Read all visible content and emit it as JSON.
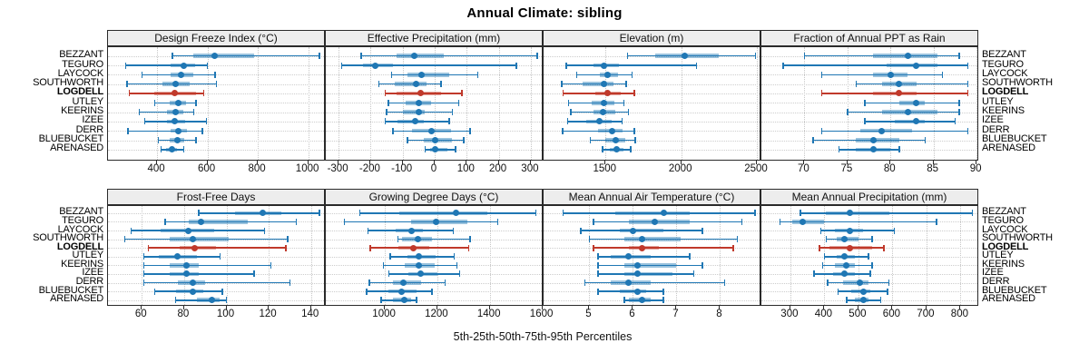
{
  "title": "Annual Climate: sibling",
  "footer": "5th-25th-50th-75th-95th Percentiles",
  "sites": [
    {
      "name": "BEZZANT",
      "bold": false
    },
    {
      "name": "TEGURO",
      "bold": false
    },
    {
      "name": "LAYCOCK",
      "bold": false
    },
    {
      "name": "SOUTHWORTH",
      "bold": false
    },
    {
      "name": "LOGDELL",
      "bold": true
    },
    {
      "name": "UTLEY",
      "bold": false
    },
    {
      "name": "KEERINS",
      "bold": false
    },
    {
      "name": "IZEE",
      "bold": false
    },
    {
      "name": "DERR",
      "bold": false
    },
    {
      "name": "BLUEBUCKET",
      "bold": false
    },
    {
      "name": "ARENASED",
      "bold": false
    }
  ],
  "colors": {
    "series": "#1f77b4",
    "highlight": "#c0392b",
    "grid": "#c9c9c9",
    "strip_bg": "#ededed",
    "border": "#2a2a2a",
    "text": "#000000"
  },
  "chart_data": {
    "type": "dotplot",
    "subtype": "percentile-ranges (5th-25th-50th-75th-95th)",
    "legend_position": "none",
    "grid": "dotted",
    "categories": [
      "BEZZANT",
      "TEGURO",
      "LAYCOCK",
      "SOUTHWORTH",
      "LOGDELL",
      "UTLEY",
      "KEERINS",
      "IZEE",
      "DERR",
      "BLUEBUCKET",
      "ARENASED"
    ],
    "highlight_category": "LOGDELL",
    "panels": [
      {
        "title": "Design Freeze Index (°C)",
        "row": 0,
        "col": 0,
        "axis": {
          "min": 205,
          "max": 1070,
          "ticks": [
            400,
            600,
            800,
            1000
          ]
        },
        "values": [
          [
            460,
            545,
            630,
            785,
            1045
          ],
          [
            275,
            455,
            505,
            550,
            600
          ],
          [
            340,
            455,
            495,
            545,
            630
          ],
          [
            280,
            420,
            475,
            530,
            635
          ],
          [
            290,
            390,
            470,
            555,
            585
          ],
          [
            390,
            450,
            485,
            515,
            555
          ],
          [
            330,
            440,
            475,
            505,
            545
          ],
          [
            350,
            440,
            470,
            510,
            595
          ],
          [
            285,
            455,
            485,
            520,
            580
          ],
          [
            405,
            450,
            480,
            508,
            555
          ],
          [
            415,
            437,
            460,
            480,
            505
          ]
        ]
      },
      {
        "title": "Effective Precipitation (mm)",
        "row": 0,
        "col": 1,
        "axis": {
          "min": -340,
          "max": 340,
          "ticks": [
            -300,
            -200,
            -100,
            0,
            100,
            200,
            300
          ]
        },
        "values": [
          [
            -230,
            -120,
            -65,
            30,
            320
          ],
          [
            -290,
            -225,
            -185,
            -130,
            255
          ],
          [
            -135,
            -85,
            -40,
            45,
            135
          ],
          [
            -175,
            -125,
            -57,
            -24,
            19
          ],
          [
            -155,
            -120,
            -45,
            20,
            85
          ],
          [
            -145,
            -90,
            -50,
            -10,
            75
          ],
          [
            -150,
            -100,
            -50,
            -30,
            55
          ],
          [
            -155,
            -115,
            -60,
            -35,
            45
          ],
          [
            -130,
            -70,
            -10,
            50,
            110
          ],
          [
            -85,
            -35,
            0,
            55,
            90
          ],
          [
            -30,
            -15,
            0,
            40,
            65
          ]
        ]
      },
      {
        "title": "Elevation (m)",
        "row": 0,
        "col": 2,
        "axis": {
          "min": 1090,
          "max": 2530,
          "ticks": [
            1500,
            2000,
            2500
          ]
        },
        "values": [
          [
            1645,
            1830,
            2025,
            2250,
            2490
          ],
          [
            1240,
            1420,
            1490,
            1590,
            2100
          ],
          [
            1310,
            1460,
            1515,
            1580,
            1675
          ],
          [
            1210,
            1350,
            1490,
            1550,
            1635
          ],
          [
            1220,
            1430,
            1515,
            1600,
            1690
          ],
          [
            1255,
            1410,
            1490,
            1560,
            1620
          ],
          [
            1270,
            1420,
            1485,
            1565,
            1650
          ],
          [
            1250,
            1370,
            1460,
            1540,
            1610
          ],
          [
            1215,
            1450,
            1545,
            1610,
            1690
          ],
          [
            1400,
            1500,
            1565,
            1630,
            1695
          ],
          [
            1480,
            1530,
            1570,
            1620,
            1665
          ]
        ]
      },
      {
        "title": "Fraction of Annual PPT as Rain",
        "row": 0,
        "col": 3,
        "axis": {
          "min": 65,
          "max": 90.3,
          "ticks": [
            70,
            75,
            80,
            85,
            90
          ]
        },
        "values": [
          [
            70,
            78,
            82,
            85.5,
            88
          ],
          [
            67.5,
            79.5,
            83,
            85.5,
            89
          ],
          [
            72,
            78,
            80,
            82,
            86
          ],
          [
            76,
            79,
            81,
            83,
            89
          ],
          [
            72,
            78,
            81,
            83,
            89
          ],
          [
            77,
            81,
            83,
            84,
            88
          ],
          [
            75,
            79,
            82,
            85.5,
            88
          ],
          [
            77,
            80.5,
            83,
            84,
            87.5
          ],
          [
            72,
            76.5,
            79,
            82.5,
            89
          ],
          [
            71,
            76,
            78,
            81,
            84
          ],
          [
            74,
            76,
            78,
            80,
            81
          ]
        ]
      },
      {
        "title": "Frost-Free Days",
        "row": 1,
        "col": 0,
        "axis": {
          "min": 44,
          "max": 147,
          "ticks": [
            60,
            80,
            100,
            120,
            140
          ]
        },
        "values": [
          [
            87,
            104,
            117,
            126,
            144
          ],
          [
            71,
            82,
            88,
            110,
            133
          ],
          [
            55,
            69,
            82,
            94,
            118
          ],
          [
            52,
            73,
            84,
            101,
            129
          ],
          [
            63,
            78,
            85,
            95,
            128
          ],
          [
            61,
            68,
            77,
            86,
            97
          ],
          [
            61,
            73,
            81,
            87,
            121
          ],
          [
            61,
            73,
            81,
            87,
            113
          ],
          [
            61,
            77,
            84,
            90,
            130
          ],
          [
            66,
            76,
            84,
            89,
            98
          ],
          [
            76,
            86,
            93,
            97,
            100
          ]
        ]
      },
      {
        "title": "Growing Degree Days (°C)",
        "row": 1,
        "col": 1,
        "axis": {
          "min": 775,
          "max": 1605,
          "ticks": [
            1000,
            1200,
            1400,
            1600
          ]
        },
        "values": [
          [
            905,
            1055,
            1270,
            1390,
            1575
          ],
          [
            845,
            1100,
            1195,
            1315,
            1430
          ],
          [
            935,
            1040,
            1100,
            1145,
            1260
          ],
          [
            1050,
            1065,
            1125,
            1180,
            1325
          ],
          [
            945,
            1050,
            1110,
            1170,
            1320
          ],
          [
            1020,
            1085,
            1130,
            1195,
            1265
          ],
          [
            995,
            1075,
            1130,
            1190,
            1275
          ],
          [
            1015,
            1090,
            1135,
            1200,
            1285
          ],
          [
            940,
            1030,
            1070,
            1140,
            1230
          ],
          [
            930,
            1015,
            1065,
            1120,
            1180
          ],
          [
            985,
            1030,
            1075,
            1100,
            1120
          ]
        ]
      },
      {
        "title": "Mean Annual Air Temperature (°C)",
        "row": 1,
        "col": 2,
        "axis": {
          "min": 3.95,
          "max": 8.95,
          "ticks": [
            5,
            6,
            7,
            8
          ]
        },
        "values": [
          [
            4.4,
            5.6,
            6.7,
            7.3,
            8.8
          ],
          [
            5.1,
            5.9,
            6.5,
            7.3,
            8.5
          ],
          [
            4.8,
            5.7,
            6.0,
            6.7,
            7.6
          ],
          [
            5.0,
            5.8,
            6.2,
            7.1,
            8.4
          ],
          [
            5.1,
            5.9,
            6.2,
            6.6,
            8.3
          ],
          [
            5.2,
            5.5,
            5.9,
            6.4,
            7.3
          ],
          [
            5.2,
            5.8,
            6.1,
            7.0,
            7.6
          ],
          [
            5.2,
            5.8,
            6.1,
            6.9,
            7.4
          ],
          [
            4.9,
            5.5,
            5.9,
            6.4,
            8.1
          ],
          [
            5.2,
            5.7,
            6.1,
            6.3,
            6.7
          ],
          [
            5.8,
            5.9,
            6.2,
            6.4,
            6.7
          ]
        ]
      },
      {
        "title": "Mean Annual Precipitation (mm)",
        "row": 1,
        "col": 3,
        "axis": {
          "min": 215,
          "max": 855,
          "ticks": [
            300,
            400,
            500,
            600,
            700,
            800
          ]
        },
        "values": [
          [
            330,
            405,
            475,
            590,
            835
          ],
          [
            270,
            305,
            335,
            400,
            730
          ],
          [
            390,
            430,
            475,
            515,
            605
          ],
          [
            405,
            435,
            460,
            500,
            540
          ],
          [
            385,
            415,
            475,
            540,
            575
          ],
          [
            400,
            435,
            460,
            490,
            530
          ],
          [
            395,
            430,
            465,
            490,
            540
          ],
          [
            370,
            425,
            460,
            490,
            535
          ],
          [
            410,
            455,
            505,
            530,
            590
          ],
          [
            440,
            480,
            515,
            535,
            585
          ],
          [
            465,
            490,
            515,
            530,
            565
          ]
        ]
      }
    ]
  }
}
